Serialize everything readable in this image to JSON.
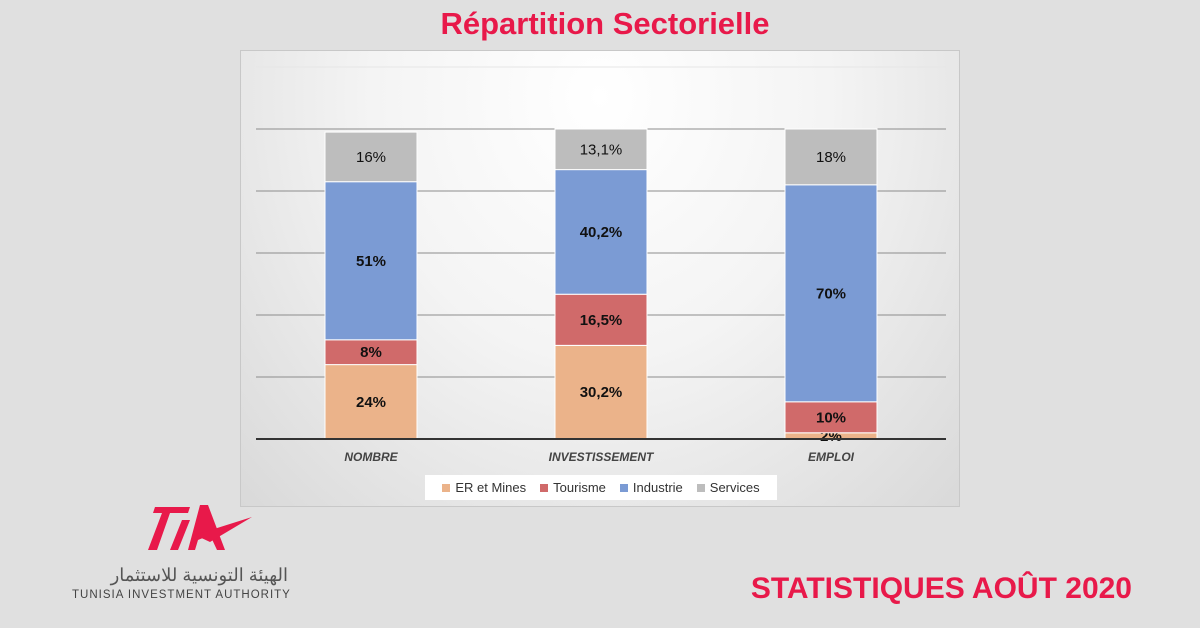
{
  "chart_data": {
    "type": "bar",
    "stacked": true,
    "title": "Répartition Sectorielle",
    "categories": [
      "NOMBRE",
      "INVESTISSEMENT",
      "EMPLOI"
    ],
    "series": [
      {
        "name": "ER et Mines",
        "color": "#ebb38a",
        "values": [
          24,
          30.2,
          2
        ],
        "labels": [
          "24%",
          "30,2%",
          "2%"
        ]
      },
      {
        "name": "Tourisme",
        "color": "#d06a6a",
        "values": [
          8,
          16.5,
          10
        ],
        "labels": [
          "8%",
          "16,5%",
          "10%"
        ]
      },
      {
        "name": "Industrie",
        "color": "#7b9bd4",
        "values": [
          51,
          40.2,
          70
        ],
        "labels": [
          "51%",
          "40,2%",
          "70%"
        ]
      },
      {
        "name": "Services",
        "color": "#bdbdbd",
        "values": [
          16,
          13.1,
          18
        ],
        "labels": [
          "16%",
          "13,1%",
          "18%"
        ]
      }
    ],
    "ylim": [
      0,
      120
    ],
    "grid": true,
    "legend": "bottom"
  },
  "logo": {
    "text": "TIA",
    "arabic": "الهيئة التونسية للاستثمار",
    "english": "TUNISIA INVESTMENT AUTHORITY"
  },
  "footer": "STATISTIQUES AOÛT 2020"
}
